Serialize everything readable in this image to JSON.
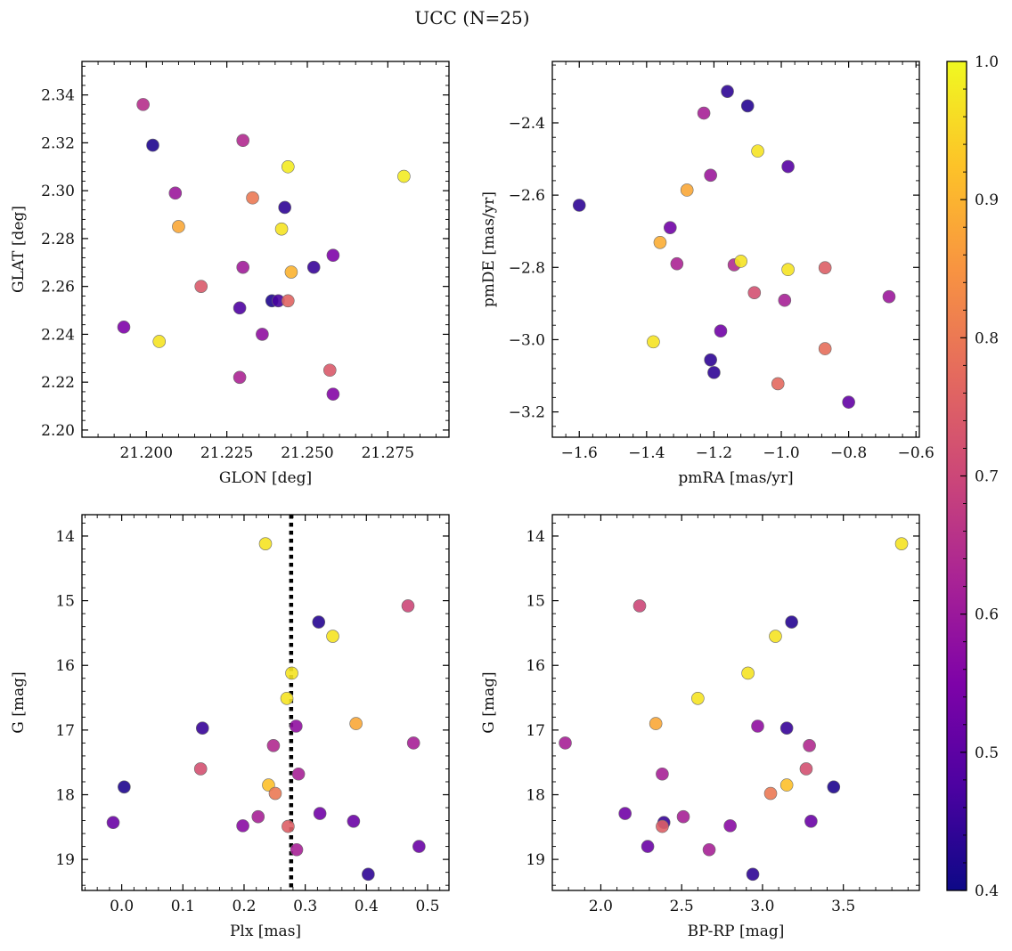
{
  "figure": {
    "title": "UCC (N=25)"
  },
  "colorbar": {
    "range": [
      0.4,
      1.0
    ],
    "ticks": [
      "0.4",
      "0.5",
      "0.6",
      "0.7",
      "0.8",
      "0.9",
      "1.0"
    ],
    "colormap": "plasma"
  },
  "chart_data": [
    {
      "type": "scatter",
      "xlabel": "GLON [deg]",
      "ylabel": "GLAT [deg]",
      "xlim": [
        21.18,
        21.294
      ],
      "ylim": [
        2.197,
        2.354
      ],
      "x_ticks": [
        "21.200",
        "21.225",
        "21.250",
        "21.275"
      ],
      "y_ticks": [
        "2.20",
        "2.22",
        "2.24",
        "2.26",
        "2.28",
        "2.30",
        "2.32",
        "2.34"
      ],
      "points": [
        {
          "x": 21.199,
          "y": 2.336,
          "c": 0.65
        },
        {
          "x": 21.202,
          "y": 2.319,
          "c": 0.42
        },
        {
          "x": 21.23,
          "y": 2.321,
          "c": 0.64
        },
        {
          "x": 21.244,
          "y": 2.31,
          "c": 0.98
        },
        {
          "x": 21.28,
          "y": 2.306,
          "c": 0.98
        },
        {
          "x": 21.209,
          "y": 2.299,
          "c": 0.6
        },
        {
          "x": 21.233,
          "y": 2.297,
          "c": 0.8
        },
        {
          "x": 21.243,
          "y": 2.293,
          "c": 0.44
        },
        {
          "x": 21.21,
          "y": 2.285,
          "c": 0.88
        },
        {
          "x": 21.242,
          "y": 2.284,
          "c": 0.97
        },
        {
          "x": 21.258,
          "y": 2.273,
          "c": 0.55
        },
        {
          "x": 21.23,
          "y": 2.268,
          "c": 0.61
        },
        {
          "x": 21.252,
          "y": 2.268,
          "c": 0.45
        },
        {
          "x": 21.245,
          "y": 2.266,
          "c": 0.9
        },
        {
          "x": 21.217,
          "y": 2.26,
          "c": 0.74
        },
        {
          "x": 21.239,
          "y": 2.254,
          "c": 0.42
        },
        {
          "x": 21.241,
          "y": 2.254,
          "c": 0.47
        },
        {
          "x": 21.244,
          "y": 2.254,
          "c": 0.76
        },
        {
          "x": 21.229,
          "y": 2.251,
          "c": 0.48
        },
        {
          "x": 21.193,
          "y": 2.243,
          "c": 0.55
        },
        {
          "x": 21.236,
          "y": 2.24,
          "c": 0.58
        },
        {
          "x": 21.204,
          "y": 2.237,
          "c": 0.97
        },
        {
          "x": 21.257,
          "y": 2.225,
          "c": 0.74
        },
        {
          "x": 21.229,
          "y": 2.222,
          "c": 0.63
        },
        {
          "x": 21.258,
          "y": 2.215,
          "c": 0.56
        }
      ]
    },
    {
      "type": "scatter",
      "xlabel": "pmRA [mas/yr]",
      "ylabel": "pmDE [mas/yr]",
      "xlim": [
        -1.68,
        -0.59
      ],
      "ylim": [
        -3.27,
        -2.23
      ],
      "x_ticks": [
        "−1.6",
        "−1.4",
        "−1.2",
        "−1.0",
        "−0.8",
        "−0.6"
      ],
      "y_ticks": [
        "−3.2",
        "−3.0",
        "−2.8",
        "−2.6",
        "−2.4"
      ],
      "points": [
        {
          "x": -1.16,
          "y": -2.313,
          "c": 0.44
        },
        {
          "x": -1.1,
          "y": -2.353,
          "c": 0.43
        },
        {
          "x": -1.23,
          "y": -2.373,
          "c": 0.62
        },
        {
          "x": -1.07,
          "y": -2.478,
          "c": 0.97
        },
        {
          "x": -0.98,
          "y": -2.521,
          "c": 0.49
        },
        {
          "x": -1.21,
          "y": -2.545,
          "c": 0.6
        },
        {
          "x": -1.28,
          "y": -2.586,
          "c": 0.88
        },
        {
          "x": -1.6,
          "y": -2.628,
          "c": 0.44
        },
        {
          "x": -1.33,
          "y": -2.69,
          "c": 0.53
        },
        {
          "x": -1.36,
          "y": -2.731,
          "c": 0.89
        },
        {
          "x": -1.31,
          "y": -2.79,
          "c": 0.63
        },
        {
          "x": -1.14,
          "y": -2.793,
          "c": 0.64
        },
        {
          "x": -1.12,
          "y": -2.783,
          "c": 0.97
        },
        {
          "x": -0.98,
          "y": -2.806,
          "c": 0.97
        },
        {
          "x": -0.87,
          "y": -2.801,
          "c": 0.75
        },
        {
          "x": -1.08,
          "y": -2.87,
          "c": 0.72
        },
        {
          "x": -0.99,
          "y": -2.891,
          "c": 0.62
        },
        {
          "x": -0.68,
          "y": -2.881,
          "c": 0.6
        },
        {
          "x": -1.18,
          "y": -2.976,
          "c": 0.53
        },
        {
          "x": -1.38,
          "y": -3.006,
          "c": 0.97
        },
        {
          "x": -0.87,
          "y": -3.025,
          "c": 0.78
        },
        {
          "x": -1.21,
          "y": -3.056,
          "c": 0.44
        },
        {
          "x": -1.2,
          "y": -3.091,
          "c": 0.44
        },
        {
          "x": -1.01,
          "y": -3.122,
          "c": 0.77
        },
        {
          "x": -0.8,
          "y": -3.173,
          "c": 0.51
        }
      ]
    },
    {
      "type": "scatter",
      "xlabel": "Plx [mas]",
      "ylabel": "G [mag]",
      "xlim": [
        -0.065,
        0.535
      ],
      "ylim": [
        19.48,
        13.67
      ],
      "y_inverted": true,
      "x_ticks": [
        "0.0",
        "0.1",
        "0.2",
        "0.3",
        "0.4",
        "0.5"
      ],
      "y_ticks": [
        "14",
        "15",
        "16",
        "17",
        "18",
        "19"
      ],
      "vline": {
        "x": 0.277,
        "style": "dotted",
        "color": "#000000"
      },
      "points": [
        {
          "x": 0.235,
          "y": 14.12,
          "c": 0.97
        },
        {
          "x": 0.468,
          "y": 15.08,
          "c": 0.7
        },
        {
          "x": 0.322,
          "y": 15.33,
          "c": 0.43
        },
        {
          "x": 0.345,
          "y": 15.55,
          "c": 0.97
        },
        {
          "x": 0.278,
          "y": 16.12,
          "c": 0.97
        },
        {
          "x": 0.27,
          "y": 16.51,
          "c": 0.97
        },
        {
          "x": 0.383,
          "y": 16.9,
          "c": 0.88
        },
        {
          "x": 0.132,
          "y": 16.97,
          "c": 0.45
        },
        {
          "x": 0.285,
          "y": 16.94,
          "c": 0.58
        },
        {
          "x": 0.248,
          "y": 17.24,
          "c": 0.64
        },
        {
          "x": 0.477,
          "y": 17.2,
          "c": 0.62
        },
        {
          "x": 0.129,
          "y": 17.6,
          "c": 0.72
        },
        {
          "x": 0.289,
          "y": 17.68,
          "c": 0.62
        },
        {
          "x": 0.004,
          "y": 17.88,
          "c": 0.42
        },
        {
          "x": 0.24,
          "y": 17.85,
          "c": 0.92
        },
        {
          "x": 0.251,
          "y": 17.98,
          "c": 0.8
        },
        {
          "x": 0.223,
          "y": 18.34,
          "c": 0.62
        },
        {
          "x": 0.324,
          "y": 18.29,
          "c": 0.53
        },
        {
          "x": -0.014,
          "y": 18.43,
          "c": 0.52
        },
        {
          "x": 0.379,
          "y": 18.41,
          "c": 0.52
        },
        {
          "x": 0.198,
          "y": 18.48,
          "c": 0.57
        },
        {
          "x": 0.272,
          "y": 18.49,
          "c": 0.75
        },
        {
          "x": 0.486,
          "y": 18.8,
          "c": 0.52
        },
        {
          "x": 0.286,
          "y": 18.85,
          "c": 0.62
        },
        {
          "x": 0.403,
          "y": 19.23,
          "c": 0.44
        }
      ]
    },
    {
      "type": "scatter",
      "xlabel": "BP-RP [mag]",
      "ylabel": "G [mag]",
      "xlim": [
        1.7,
        3.97
      ],
      "ylim": [
        19.48,
        13.67
      ],
      "y_inverted": true,
      "x_ticks": [
        "2.0",
        "2.5",
        "3.0",
        "3.5"
      ],
      "y_ticks": [
        "14",
        "15",
        "16",
        "17",
        "18",
        "19"
      ],
      "points": [
        {
          "x": 3.86,
          "y": 14.12,
          "c": 0.97
        },
        {
          "x": 2.24,
          "y": 15.08,
          "c": 0.7
        },
        {
          "x": 3.18,
          "y": 15.33,
          "c": 0.43
        },
        {
          "x": 3.08,
          "y": 15.55,
          "c": 0.97
        },
        {
          "x": 2.91,
          "y": 16.12,
          "c": 0.97
        },
        {
          "x": 2.6,
          "y": 16.51,
          "c": 0.97
        },
        {
          "x": 2.34,
          "y": 16.9,
          "c": 0.88
        },
        {
          "x": 2.97,
          "y": 16.94,
          "c": 0.58
        },
        {
          "x": 3.15,
          "y": 16.97,
          "c": 0.45
        },
        {
          "x": 1.78,
          "y": 17.2,
          "c": 0.62
        },
        {
          "x": 3.29,
          "y": 17.24,
          "c": 0.64
        },
        {
          "x": 3.27,
          "y": 17.6,
          "c": 0.72
        },
        {
          "x": 2.38,
          "y": 17.68,
          "c": 0.62
        },
        {
          "x": 3.44,
          "y": 17.88,
          "c": 0.42
        },
        {
          "x": 3.15,
          "y": 17.85,
          "c": 0.92
        },
        {
          "x": 3.05,
          "y": 17.98,
          "c": 0.8
        },
        {
          "x": 2.15,
          "y": 18.29,
          "c": 0.53
        },
        {
          "x": 2.51,
          "y": 18.34,
          "c": 0.62
        },
        {
          "x": 2.39,
          "y": 18.43,
          "c": 0.45
        },
        {
          "x": 3.3,
          "y": 18.41,
          "c": 0.52
        },
        {
          "x": 2.38,
          "y": 18.49,
          "c": 0.75
        },
        {
          "x": 2.8,
          "y": 18.48,
          "c": 0.57
        },
        {
          "x": 2.29,
          "y": 18.8,
          "c": 0.52
        },
        {
          "x": 2.67,
          "y": 18.85,
          "c": 0.62
        },
        {
          "x": 2.94,
          "y": 19.23,
          "c": 0.44
        }
      ]
    }
  ]
}
